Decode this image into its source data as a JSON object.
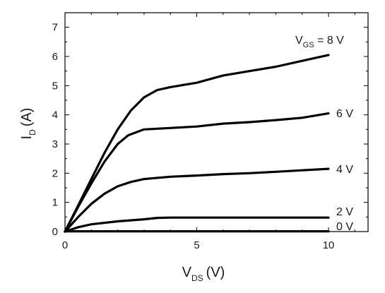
{
  "chart_data": {
    "type": "line",
    "title": "",
    "xlabel": {
      "main": "V",
      "sub": "DS",
      "unit": "(V)"
    },
    "ylabel": {
      "main": "I",
      "sub": "D",
      "unit": "(A)"
    },
    "xlim": [
      0,
      11.5
    ],
    "ylim": [
      0,
      7.5
    ],
    "x_ticks": [
      0,
      5,
      10
    ],
    "y_ticks": [
      0,
      1,
      2,
      3,
      4,
      5,
      6,
      7
    ],
    "grid": false,
    "legend": "none",
    "line_color": "#000000",
    "series": [
      {
        "label_main": "V",
        "label_sub": "GS",
        "label_rest": " = 8 V",
        "points": [
          [
            0,
            0
          ],
          [
            0.5,
            0.9
          ],
          [
            1,
            1.8
          ],
          [
            1.5,
            2.7
          ],
          [
            2,
            3.5
          ],
          [
            2.5,
            4.15
          ],
          [
            3,
            4.6
          ],
          [
            3.5,
            4.85
          ],
          [
            4,
            4.95
          ],
          [
            5,
            5.1
          ],
          [
            6,
            5.35
          ],
          [
            7,
            5.5
          ],
          [
            8,
            5.65
          ],
          [
            9,
            5.85
          ],
          [
            10,
            6.05
          ]
        ]
      },
      {
        "label_main": "6 V",
        "points": [
          [
            0,
            0
          ],
          [
            0.5,
            0.85
          ],
          [
            1,
            1.65
          ],
          [
            1.5,
            2.4
          ],
          [
            2,
            3.0
          ],
          [
            2.4,
            3.3
          ],
          [
            3,
            3.5
          ],
          [
            4,
            3.55
          ],
          [
            5,
            3.6
          ],
          [
            6,
            3.7
          ],
          [
            7,
            3.75
          ],
          [
            8,
            3.82
          ],
          [
            9,
            3.9
          ],
          [
            10,
            4.05
          ]
        ]
      },
      {
        "label_main": "4 V",
        "points": [
          [
            0,
            0
          ],
          [
            0.5,
            0.5
          ],
          [
            1,
            0.95
          ],
          [
            1.5,
            1.3
          ],
          [
            2,
            1.55
          ],
          [
            2.5,
            1.7
          ],
          [
            3,
            1.8
          ],
          [
            4,
            1.88
          ],
          [
            5,
            1.92
          ],
          [
            6,
            1.97
          ],
          [
            7,
            2.0
          ],
          [
            8,
            2.05
          ],
          [
            9,
            2.1
          ],
          [
            10,
            2.15
          ]
        ]
      },
      {
        "label_main": "2 V",
        "points": [
          [
            0,
            0
          ],
          [
            0.5,
            0.15
          ],
          [
            1,
            0.25
          ],
          [
            2,
            0.35
          ],
          [
            3,
            0.42
          ],
          [
            3.5,
            0.47
          ],
          [
            4,
            0.48
          ],
          [
            5,
            0.48
          ],
          [
            6,
            0.48
          ],
          [
            7,
            0.48
          ],
          [
            8,
            0.48
          ],
          [
            9,
            0.48
          ],
          [
            10,
            0.48
          ]
        ]
      },
      {
        "label_main": "0 V",
        "points": [
          [
            0,
            0.01
          ],
          [
            10,
            0.01
          ]
        ]
      }
    ]
  }
}
